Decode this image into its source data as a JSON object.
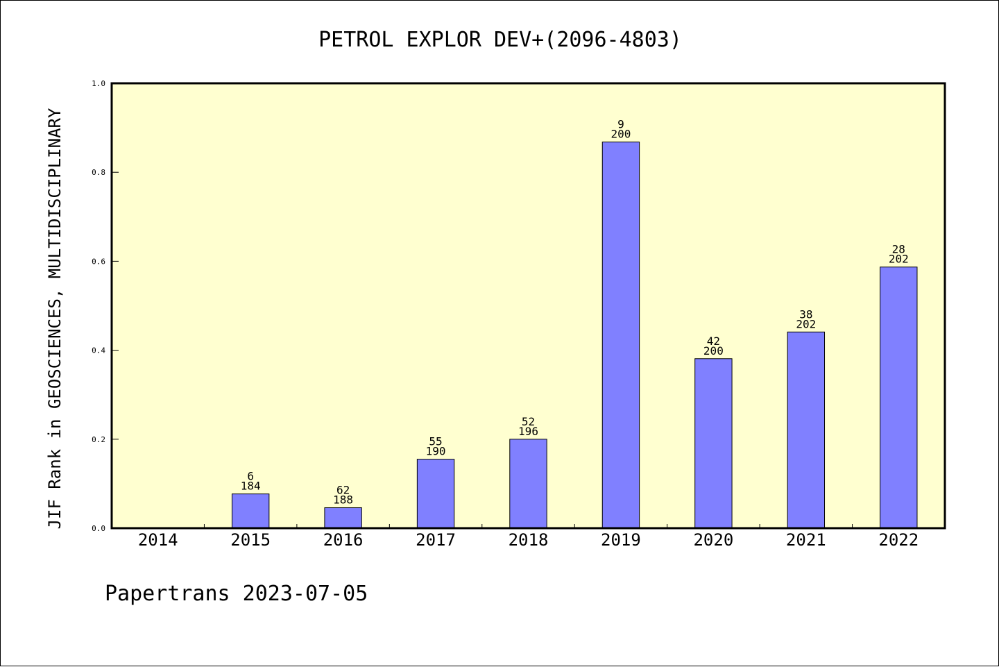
{
  "chart_data": {
    "type": "bar",
    "title": "PETROL EXPLOR DEV+(2096-4803)",
    "xlabel": "",
    "ylabel": "JIF Rank in GEOSCIENCES, MULTIDISCIPLINARY",
    "categories": [
      "2014",
      "2015",
      "2016",
      "2017",
      "2018",
      "2019",
      "2020",
      "2021",
      "2022"
    ],
    "values": [
      0,
      0.077,
      0.046,
      0.155,
      0.2,
      0.868,
      0.381,
      0.441,
      0.587
    ],
    "rank_labels": [
      "",
      "6",
      "62",
      "55",
      "52",
      "9",
      "42",
      "38",
      "28"
    ],
    "total_labels": [
      "",
      "184",
      "188",
      "190",
      "196",
      "200",
      "200",
      "202",
      "202"
    ],
    "ylim": [
      0,
      1
    ],
    "yticks": [
      "0.0",
      "0.2",
      "0.4",
      "0.6",
      "0.8",
      "1.0"
    ],
    "grid": false,
    "colors": {
      "bar": "#8080ff",
      "plot_background": "#ffffd0",
      "axes": "#000000"
    }
  },
  "footer": {
    "text": "Papertrans 2023-07-05"
  }
}
